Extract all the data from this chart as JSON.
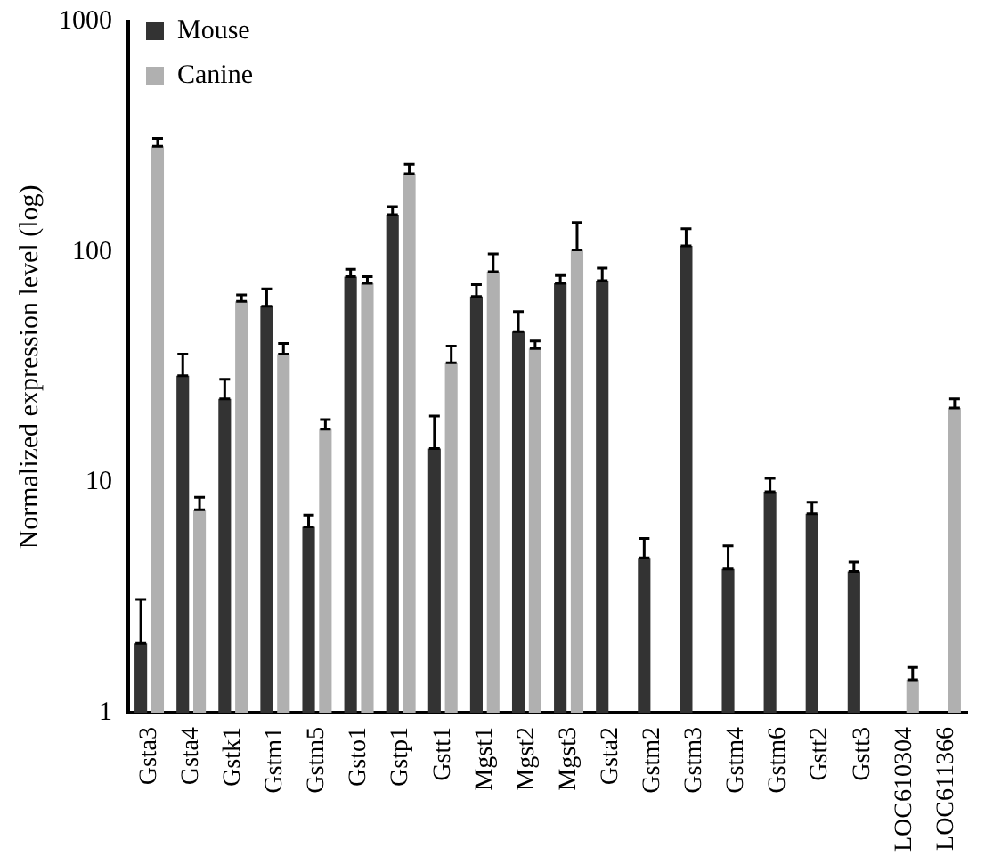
{
  "chart_data": {
    "type": "bar",
    "ylabel": "Normalized expression level (log)",
    "categories": [
      "Gsta3",
      "Gsta4",
      "Gstk1",
      "Gstm1",
      "Gstm5",
      "Gsto1",
      "Gstp1",
      "Gstt1",
      "Mgst1",
      "Mgst2",
      "Mgst3",
      "Gsta2",
      "Gstm2",
      "Gstm3",
      "Gstm4",
      "Gstm6",
      "Gstt2",
      "Gstt3",
      "LOC610304",
      "LOC611366"
    ],
    "series": [
      {
        "name": "Mouse",
        "color": "#333333",
        "values": [
          2.0,
          29,
          23,
          58,
          6.4,
          78,
          145,
          14,
          64,
          45,
          73,
          75,
          4.7,
          106,
          4.2,
          9.1,
          7.3,
          4.1,
          null,
          null
        ],
        "errors": [
          [
            2.0,
            3.1
          ],
          [
            29,
            36
          ],
          [
            23,
            28
          ],
          [
            58,
            69
          ],
          [
            6.4,
            7.2
          ],
          [
            78,
            84
          ],
          [
            145,
            157
          ],
          [
            14,
            19.4
          ],
          [
            64,
            72
          ],
          [
            45,
            55
          ],
          [
            73,
            79
          ],
          [
            75,
            85
          ],
          [
            4.7,
            5.7
          ],
          [
            106,
            126
          ],
          [
            4.2,
            5.3
          ],
          [
            9.1,
            10.4
          ],
          [
            7.3,
            8.2
          ],
          [
            4.1,
            4.5
          ],
          null,
          null
        ]
      },
      {
        "name": "Canine",
        "color": "#b0b0b0",
        "values": [
          287,
          7.6,
          61,
          36,
          17,
          73,
          218,
          33,
          82,
          38,
          102,
          null,
          null,
          null,
          null,
          null,
          null,
          null,
          1.39,
          21
        ],
        "errors": [
          [
            287,
            310
          ],
          [
            7.6,
            8.6
          ],
          [
            61,
            65
          ],
          [
            36,
            40
          ],
          [
            17,
            18.7
          ],
          [
            73,
            78
          ],
          [
            218,
            240
          ],
          [
            33,
            39
          ],
          [
            82,
            98
          ],
          [
            38,
            41
          ],
          [
            102,
            134
          ],
          null,
          null,
          null,
          null,
          null,
          null,
          null,
          [
            1.39,
            1.57
          ],
          [
            21,
            23
          ]
        ]
      }
    ],
    "log": "y",
    "ylim": [
      1,
      1000
    ],
    "yticks": [
      1,
      10,
      100,
      1000
    ],
    "grid": false,
    "legend": "top left"
  }
}
